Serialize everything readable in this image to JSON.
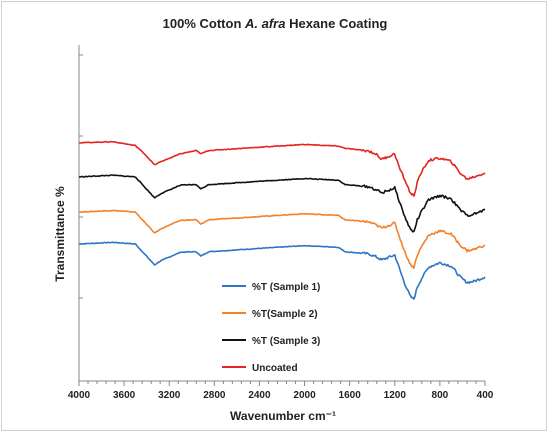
{
  "chart_data": {
    "type": "line",
    "title": "100% Cotton A. afra Hexane Coating",
    "title_parts": {
      "before": "100% Cotton ",
      "italic": "A. afra",
      "after": " Hexane Coating"
    },
    "xlabel": "Wavenumber cm⁻¹",
    "ylabel": "Transmittance %",
    "xlim": [
      4000,
      400
    ],
    "x_reversed": true,
    "x_ticks": [
      "4000",
      "3600",
      "3200",
      "2800",
      "2400",
      "2000",
      "1600",
      "1200",
      "800",
      "400"
    ],
    "y_ticks_labeled": false,
    "grid": false,
    "legend_position": "lower-center",
    "series": [
      {
        "name": "%T (Sample 1)",
        "color": "#2e75c6",
        "offset": 0,
        "points": [
          [
            4000,
            0
          ],
          [
            3700,
            3
          ],
          [
            3500,
            0
          ],
          [
            3420,
            -18
          ],
          [
            3330,
            -38
          ],
          [
            3270,
            -30
          ],
          [
            3100,
            -15
          ],
          [
            2960,
            -14
          ],
          [
            2920,
            -22
          ],
          [
            2850,
            -14
          ],
          [
            2400,
            -8
          ],
          [
            2000,
            -3
          ],
          [
            1700,
            -6
          ],
          [
            1640,
            -14
          ],
          [
            1430,
            -18
          ],
          [
            1370,
            -23
          ],
          [
            1315,
            -29
          ],
          [
            1200,
            -20
          ],
          [
            1160,
            -44
          ],
          [
            1110,
            -73
          ],
          [
            1060,
            -96
          ],
          [
            1030,
            -100
          ],
          [
            1000,
            -78
          ],
          [
            960,
            -62
          ],
          [
            900,
            -42
          ],
          [
            800,
            -34
          ],
          [
            700,
            -40
          ],
          [
            620,
            -60
          ],
          [
            560,
            -70
          ],
          [
            500,
            -68
          ],
          [
            400,
            -60
          ]
        ]
      },
      {
        "name": "%T(Sample 2)",
        "color": "#f4812a",
        "offset": 58,
        "points": [
          [
            4000,
            0
          ],
          [
            3700,
            3
          ],
          [
            3500,
            0
          ],
          [
            3420,
            -18
          ],
          [
            3330,
            -38
          ],
          [
            3270,
            -30
          ],
          [
            3100,
            -15
          ],
          [
            2960,
            -14
          ],
          [
            2920,
            -22
          ],
          [
            2850,
            -14
          ],
          [
            2400,
            -8
          ],
          [
            2000,
            -3
          ],
          [
            1700,
            -6
          ],
          [
            1640,
            -14
          ],
          [
            1430,
            -18
          ],
          [
            1370,
            -23
          ],
          [
            1315,
            -29
          ],
          [
            1200,
            -20
          ],
          [
            1160,
            -44
          ],
          [
            1110,
            -73
          ],
          [
            1060,
            -96
          ],
          [
            1030,
            -100
          ],
          [
            1000,
            -78
          ],
          [
            960,
            -62
          ],
          [
            900,
            -42
          ],
          [
            800,
            -34
          ],
          [
            700,
            -40
          ],
          [
            620,
            -60
          ],
          [
            560,
            -70
          ],
          [
            500,
            -68
          ],
          [
            400,
            -60
          ]
        ]
      },
      {
        "name": "%T (Sample 3)",
        "color": "#111111",
        "offset": 122,
        "points": [
          [
            4000,
            0
          ],
          [
            3700,
            3
          ],
          [
            3500,
            0
          ],
          [
            3420,
            -18
          ],
          [
            3330,
            -38
          ],
          [
            3270,
            -30
          ],
          [
            3100,
            -15
          ],
          [
            2960,
            -14
          ],
          [
            2920,
            -22
          ],
          [
            2850,
            -14
          ],
          [
            2400,
            -8
          ],
          [
            2000,
            -3
          ],
          [
            1700,
            -6
          ],
          [
            1640,
            -14
          ],
          [
            1430,
            -18
          ],
          [
            1370,
            -23
          ],
          [
            1315,
            -29
          ],
          [
            1200,
            -20
          ],
          [
            1160,
            -44
          ],
          [
            1110,
            -73
          ],
          [
            1060,
            -96
          ],
          [
            1030,
            -100
          ],
          [
            1000,
            -78
          ],
          [
            960,
            -62
          ],
          [
            900,
            -42
          ],
          [
            800,
            -34
          ],
          [
            700,
            -40
          ],
          [
            620,
            -60
          ],
          [
            560,
            -70
          ],
          [
            500,
            -68
          ],
          [
            400,
            -60
          ]
        ]
      },
      {
        "name": "Uncoated",
        "color": "#e52521",
        "offset": 184,
        "points": [
          [
            4000,
            0
          ],
          [
            3700,
            2
          ],
          [
            3500,
            -5
          ],
          [
            3420,
            -20
          ],
          [
            3330,
            -40
          ],
          [
            3270,
            -34
          ],
          [
            3100,
            -20
          ],
          [
            2960,
            -14
          ],
          [
            2920,
            -20
          ],
          [
            2850,
            -14
          ],
          [
            2400,
            -8
          ],
          [
            2000,
            -3
          ],
          [
            1700,
            -6
          ],
          [
            1640,
            -10
          ],
          [
            1430,
            -15
          ],
          [
            1370,
            -20
          ],
          [
            1315,
            -30
          ],
          [
            1200,
            -20
          ],
          [
            1160,
            -45
          ],
          [
            1110,
            -68
          ],
          [
            1060,
            -92
          ],
          [
            1030,
            -96
          ],
          [
            1000,
            -72
          ],
          [
            960,
            -52
          ],
          [
            900,
            -32
          ],
          [
            800,
            -28
          ],
          [
            700,
            -34
          ],
          [
            620,
            -55
          ],
          [
            560,
            -66
          ],
          [
            500,
            -62
          ],
          [
            400,
            -55
          ]
        ]
      }
    ]
  }
}
